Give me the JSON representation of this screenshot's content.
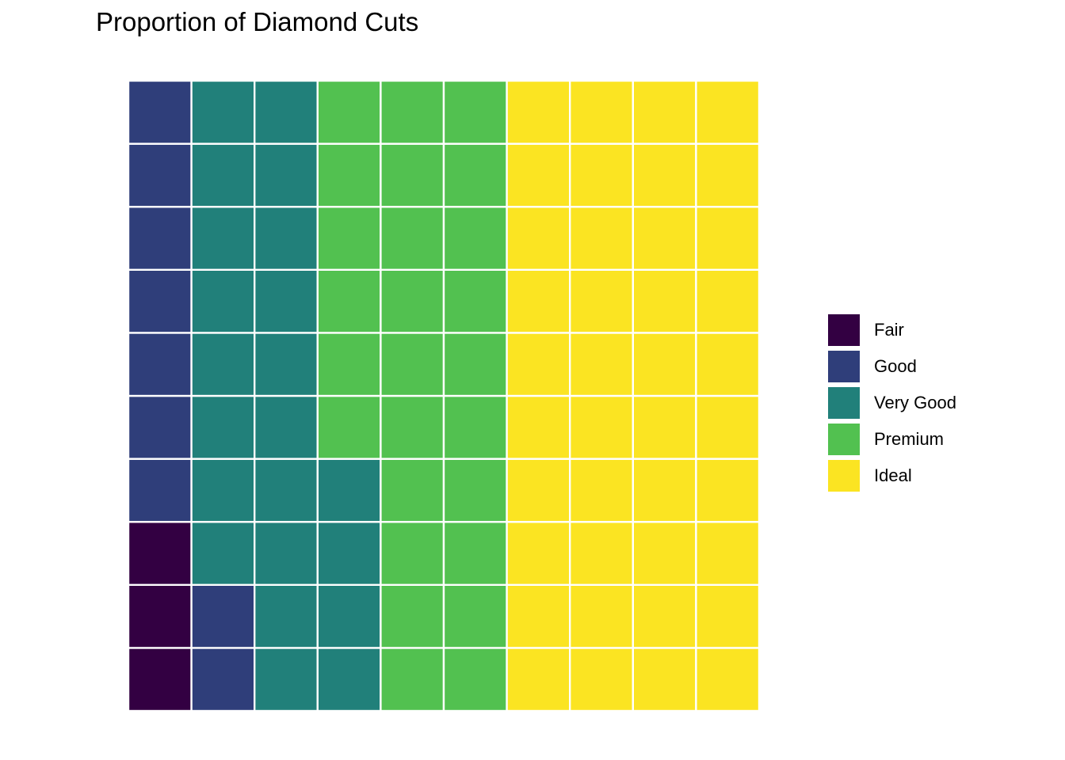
{
  "chart_data": {
    "type": "waffle",
    "title": "Proportion of Diamond Cuts",
    "grid": {
      "rows": 10,
      "cols": 10
    },
    "fill_order": "column-wise, bottom-to-top, left-to-right",
    "categories": [
      "Fair",
      "Good",
      "Very Good",
      "Premium",
      "Ideal"
    ],
    "values": [
      3,
      9,
      22,
      26,
      40
    ],
    "colors": [
      "#330042",
      "#2F3E7A",
      "#21807A",
      "#52C150",
      "#FBE422"
    ],
    "tile_border_color": "#ffffff",
    "legend_position": "right"
  }
}
